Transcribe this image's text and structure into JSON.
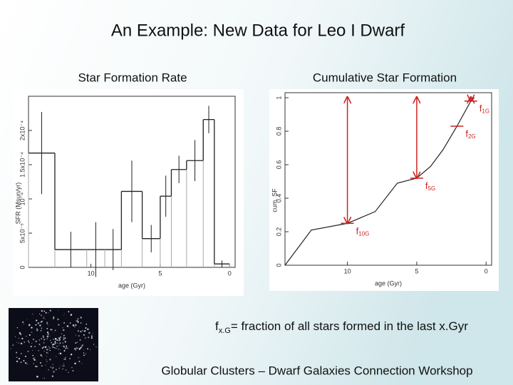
{
  "title": "An Example: New Data for Leo I Dwarf",
  "chart_data": [
    {
      "type": "histogram",
      "title": "Star Formation Rate",
      "xlabel": "age (Gyr)",
      "ylabel": "SFR (Msun/yr)",
      "bins": [
        14.5,
        12.6,
        10.3,
        9.0,
        7.8,
        6.3,
        5.0,
        4.2,
        3.1,
        1.9,
        1.1,
        0
      ],
      "values": [
        0.000167,
        2.6e-05,
        2.6e-05,
        2.6e-05,
        0.000111,
        4.2e-05,
        0.000104,
        0.000143,
        0.000156,
        0.000216,
        5e-06
      ],
      "errors": [
        6e-05,
        2.6e-05,
        4e-05,
        3e-05,
        4.5e-05,
        2e-05,
        3e-05,
        2e-05,
        3e-05,
        2e-05,
        5e-06
      ],
      "color": "#222222",
      "xlim": [
        14.5,
        -0.4
      ],
      "xticks": [
        10,
        5,
        0
      ],
      "ylim": [
        0,
        0.00025
      ],
      "yticks": [
        0,
        {
          "value": 5e-05,
          "label": "5x10⁻⁵"
        },
        {
          "value": 0.0001,
          "label": "10⁻⁴"
        },
        {
          "value": 0.00015,
          "label": "1.5x10⁻⁴"
        },
        {
          "value": 0.0002,
          "label": "2x10⁻⁴"
        }
      ]
    },
    {
      "type": "line",
      "title": "Cumulative Star Formation",
      "xlabel": "age (Gyr)",
      "ylabel": "cum. SF",
      "x": [
        14.5,
        12.6,
        10,
        8,
        6.4,
        5,
        4,
        3.1,
        2.1,
        1.1,
        0.85
      ],
      "values": [
        0,
        0.21,
        0.25,
        0.32,
        0.49,
        0.52,
        0.59,
        0.69,
        0.83,
        0.98,
        1
      ],
      "color": "#222222",
      "xlim": [
        14.5,
        -0.4
      ],
      "xticks": [
        10,
        5,
        0
      ],
      "ylim": [
        0,
        1.03
      ],
      "yticks": [
        0,
        0.2,
        0.4,
        0.6,
        0.8,
        1
      ],
      "annotation_color": "#cc2222",
      "annotations": [
        {
          "label": "f",
          "sub": "10G",
          "x": 10,
          "y": 0.25,
          "arrow": true
        },
        {
          "label": "f",
          "sub": "5G",
          "x": 5,
          "y": 0.52,
          "arrow": true
        },
        {
          "label": "f",
          "sub": "2G",
          "x": 2.1,
          "y": 0.83,
          "arrow": false
        },
        {
          "label": "f",
          "sub": "1G",
          "x": 1.1,
          "y": 0.98,
          "arrow": true
        }
      ]
    }
  ],
  "caption": {
    "f": "f",
    "sub": "x.G",
    "text": "= fraction of all stars formed in the last x.Gyr"
  },
  "footer": "Globular Clusters – Dwarf Galaxies Connection Workshop"
}
